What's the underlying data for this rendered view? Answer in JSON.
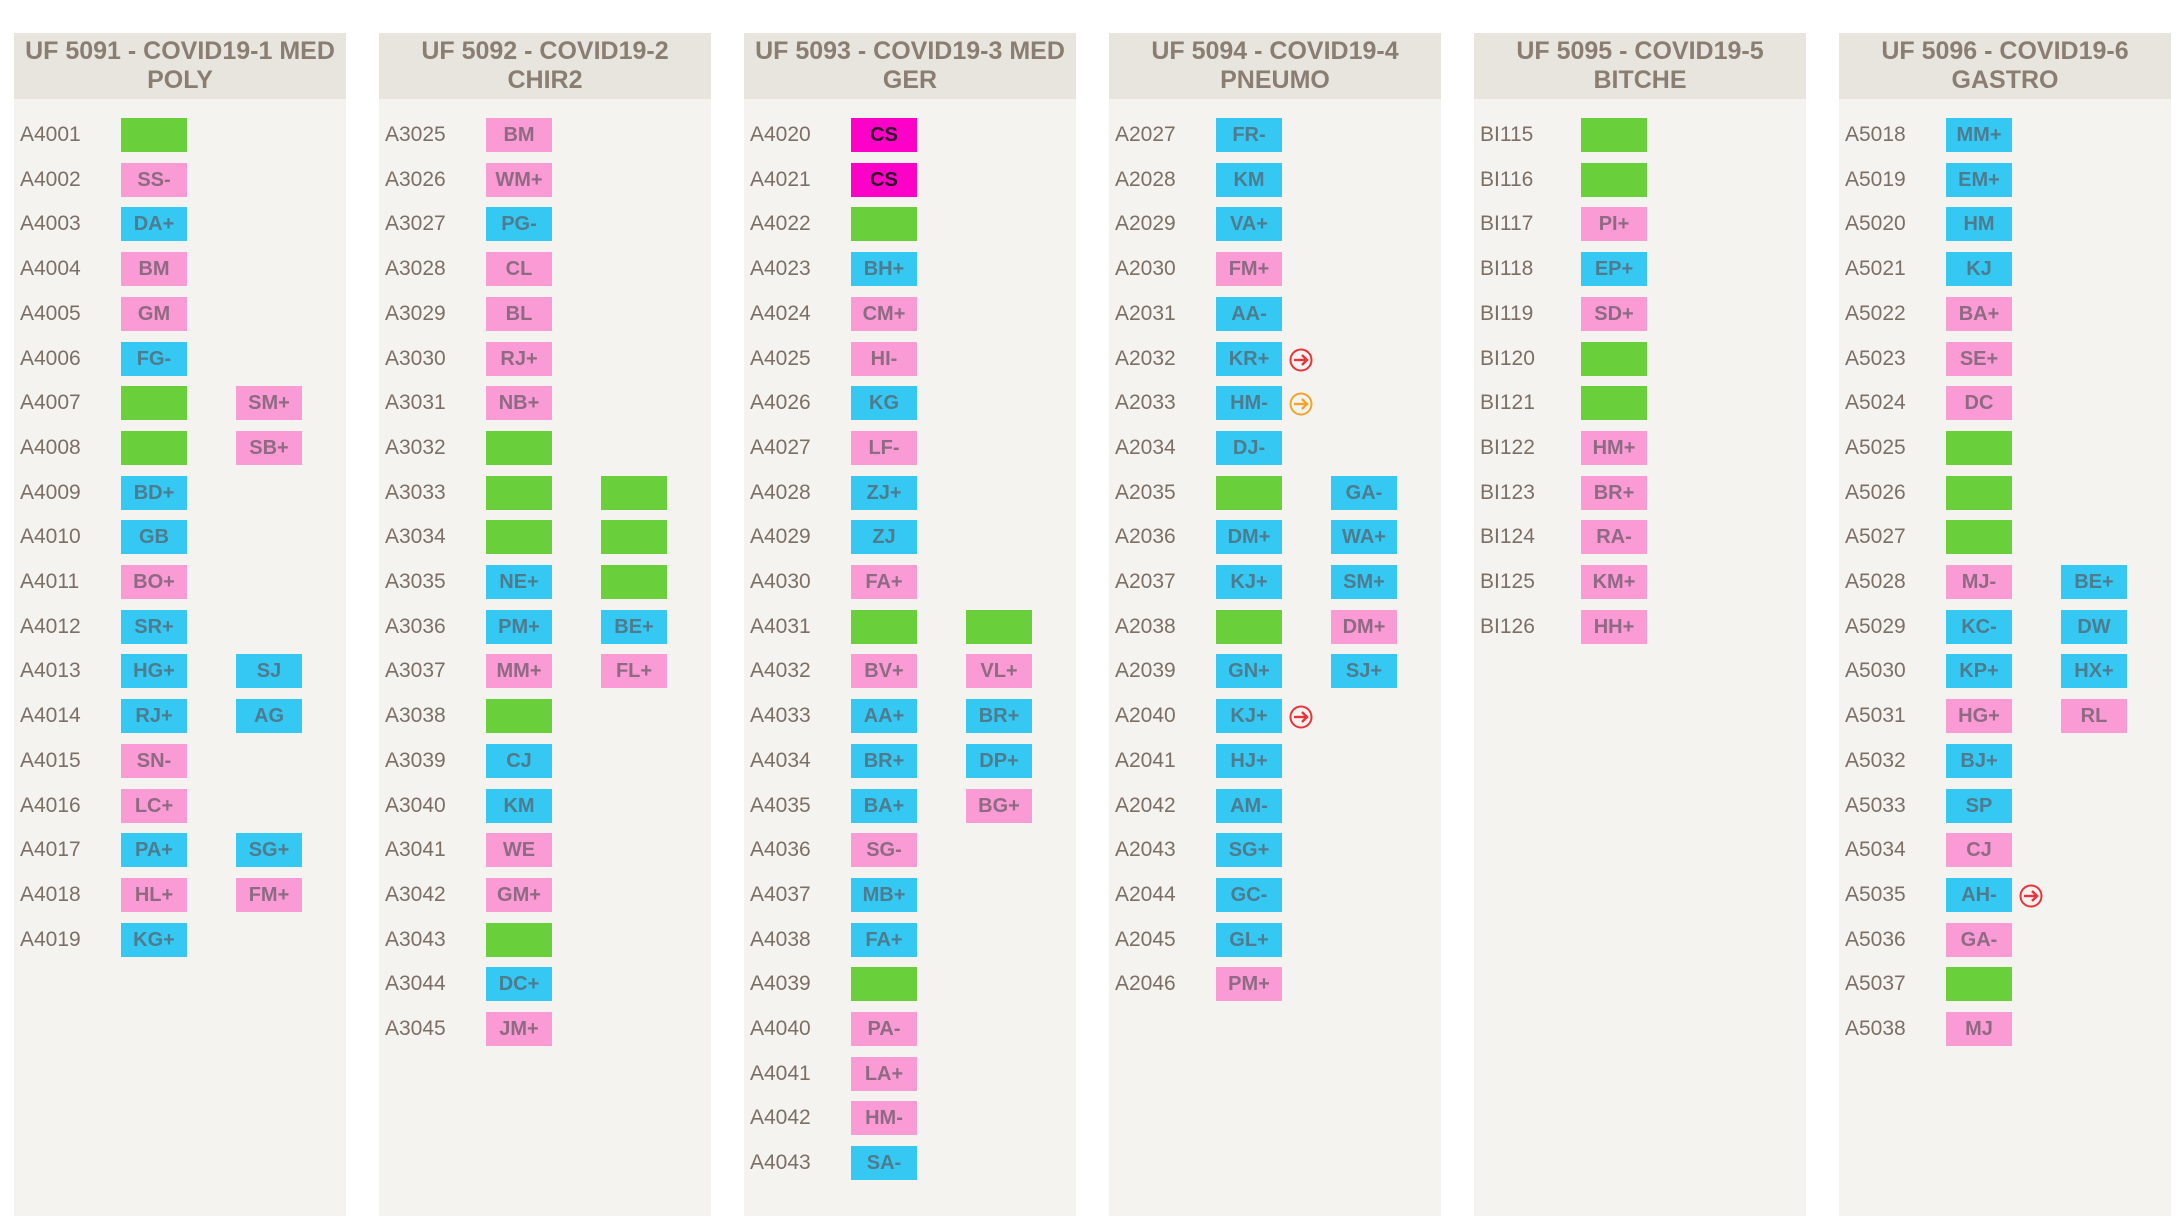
{
  "colors": {
    "pink": "#fa9bd6",
    "blue": "#35c8f3",
    "green": "#69cf3b",
    "magenta": "#ff00c8",
    "exit_red": "#e8343a",
    "exit_orange": "#f3a529"
  },
  "units": [
    {
      "title": "UF 5091 - COVID19-1 MED POLY",
      "beds": [
        {
          "id": "A4001",
          "p1": {
            "label": "",
            "color": "green"
          }
        },
        {
          "id": "A4002",
          "p1": {
            "label": "SS-",
            "color": "pink"
          }
        },
        {
          "id": "A4003",
          "p1": {
            "label": "DA+",
            "color": "blue"
          }
        },
        {
          "id": "A4004",
          "p1": {
            "label": "BM",
            "color": "pink"
          }
        },
        {
          "id": "A4005",
          "p1": {
            "label": "GM",
            "color": "pink"
          }
        },
        {
          "id": "A4006",
          "p1": {
            "label": "FG-",
            "color": "blue"
          }
        },
        {
          "id": "A4007",
          "p1": {
            "label": "",
            "color": "green"
          },
          "p2": {
            "label": "SM+",
            "color": "pink"
          }
        },
        {
          "id": "A4008",
          "p1": {
            "label": "",
            "color": "green"
          },
          "p2": {
            "label": "SB+",
            "color": "pink"
          }
        },
        {
          "id": "A4009",
          "p1": {
            "label": "BD+",
            "color": "blue"
          }
        },
        {
          "id": "A4010",
          "p1": {
            "label": "GB",
            "color": "blue"
          }
        },
        {
          "id": "A4011",
          "p1": {
            "label": "BO+",
            "color": "pink"
          }
        },
        {
          "id": "A4012",
          "p1": {
            "label": "SR+",
            "color": "blue"
          }
        },
        {
          "id": "A4013",
          "p1": {
            "label": "HG+",
            "color": "blue"
          },
          "p2": {
            "label": "SJ",
            "color": "blue"
          }
        },
        {
          "id": "A4014",
          "p1": {
            "label": "RJ+",
            "color": "blue"
          },
          "p2": {
            "label": "AG",
            "color": "blue"
          }
        },
        {
          "id": "A4015",
          "p1": {
            "label": "SN-",
            "color": "pink"
          }
        },
        {
          "id": "A4016",
          "p1": {
            "label": "LC+",
            "color": "pink"
          }
        },
        {
          "id": "A4017",
          "p1": {
            "label": "PA+",
            "color": "blue"
          },
          "p2": {
            "label": "SG+",
            "color": "blue"
          }
        },
        {
          "id": "A4018",
          "p1": {
            "label": "HL+",
            "color": "pink"
          },
          "p2": {
            "label": "FM+",
            "color": "pink"
          }
        },
        {
          "id": "A4019",
          "p1": {
            "label": "KG+",
            "color": "blue"
          }
        }
      ]
    },
    {
      "title": "UF 5092 - COVID19-2 CHIR2",
      "beds": [
        {
          "id": "A3025",
          "p1": {
            "label": "BM",
            "color": "pink"
          }
        },
        {
          "id": "A3026",
          "p1": {
            "label": "WM+",
            "color": "pink"
          }
        },
        {
          "id": "A3027",
          "p1": {
            "label": "PG-",
            "color": "blue"
          }
        },
        {
          "id": "A3028",
          "p1": {
            "label": "CL",
            "color": "pink"
          }
        },
        {
          "id": "A3029",
          "p1": {
            "label": "BL",
            "color": "pink"
          }
        },
        {
          "id": "A3030",
          "p1": {
            "label": "RJ+",
            "color": "pink"
          }
        },
        {
          "id": "A3031",
          "p1": {
            "label": "NB+",
            "color": "pink"
          }
        },
        {
          "id": "A3032",
          "p1": {
            "label": "",
            "color": "green"
          }
        },
        {
          "id": "A3033",
          "p1": {
            "label": "",
            "color": "green"
          },
          "p2": {
            "label": "",
            "color": "green"
          }
        },
        {
          "id": "A3034",
          "p1": {
            "label": "",
            "color": "green"
          },
          "p2": {
            "label": "",
            "color": "green"
          }
        },
        {
          "id": "A3035",
          "p1": {
            "label": "NE+",
            "color": "blue"
          },
          "p2": {
            "label": "",
            "color": "green"
          }
        },
        {
          "id": "A3036",
          "p1": {
            "label": "PM+",
            "color": "blue"
          },
          "p2": {
            "label": "BE+",
            "color": "blue"
          }
        },
        {
          "id": "A3037",
          "p1": {
            "label": "MM+",
            "color": "pink"
          },
          "p2": {
            "label": "FL+",
            "color": "pink"
          }
        },
        {
          "id": "A3038",
          "p1": {
            "label": "",
            "color": "green"
          }
        },
        {
          "id": "A3039",
          "p1": {
            "label": "CJ",
            "color": "blue"
          }
        },
        {
          "id": "A3040",
          "p1": {
            "label": "KM",
            "color": "blue"
          }
        },
        {
          "id": "A3041",
          "p1": {
            "label": "WE",
            "color": "pink"
          }
        },
        {
          "id": "A3042",
          "p1": {
            "label": "GM+",
            "color": "pink"
          }
        },
        {
          "id": "A3043",
          "p1": {
            "label": "",
            "color": "green"
          }
        },
        {
          "id": "A3044",
          "p1": {
            "label": "DC+",
            "color": "blue"
          }
        },
        {
          "id": "A3045",
          "p1": {
            "label": "JM+",
            "color": "pink"
          }
        }
      ]
    },
    {
      "title": "UF 5093 - COVID19-3 MED GER",
      "beds": [
        {
          "id": "A4020",
          "p1": {
            "label": "CS",
            "color": "magenta"
          }
        },
        {
          "id": "A4021",
          "p1": {
            "label": "CS",
            "color": "magenta"
          }
        },
        {
          "id": "A4022",
          "p1": {
            "label": "",
            "color": "green"
          }
        },
        {
          "id": "A4023",
          "p1": {
            "label": "BH+",
            "color": "blue"
          }
        },
        {
          "id": "A4024",
          "p1": {
            "label": "CM+",
            "color": "pink"
          }
        },
        {
          "id": "A4025",
          "p1": {
            "label": "HI-",
            "color": "pink"
          }
        },
        {
          "id": "A4026",
          "p1": {
            "label": "KG",
            "color": "blue"
          }
        },
        {
          "id": "A4027",
          "p1": {
            "label": "LF-",
            "color": "pink"
          }
        },
        {
          "id": "A4028",
          "p1": {
            "label": "ZJ+",
            "color": "blue"
          }
        },
        {
          "id": "A4029",
          "p1": {
            "label": "ZJ",
            "color": "blue"
          }
        },
        {
          "id": "A4030",
          "p1": {
            "label": "FA+",
            "color": "pink"
          }
        },
        {
          "id": "A4031",
          "p1": {
            "label": "",
            "color": "green"
          },
          "p2": {
            "label": "",
            "color": "green"
          }
        },
        {
          "id": "A4032",
          "p1": {
            "label": "BV+",
            "color": "pink"
          },
          "p2": {
            "label": "VL+",
            "color": "pink"
          }
        },
        {
          "id": "A4033",
          "p1": {
            "label": "AA+",
            "color": "blue"
          },
          "p2": {
            "label": "BR+",
            "color": "blue"
          }
        },
        {
          "id": "A4034",
          "p1": {
            "label": "BR+",
            "color": "blue"
          },
          "p2": {
            "label": "DP+",
            "color": "blue"
          }
        },
        {
          "id": "A4035",
          "p1": {
            "label": "BA+",
            "color": "blue"
          },
          "p2": {
            "label": "BG+",
            "color": "pink"
          }
        },
        {
          "id": "A4036",
          "p1": {
            "label": "SG-",
            "color": "pink"
          }
        },
        {
          "id": "A4037",
          "p1": {
            "label": "MB+",
            "color": "blue"
          }
        },
        {
          "id": "A4038",
          "p1": {
            "label": "FA+",
            "color": "blue"
          }
        },
        {
          "id": "A4039",
          "p1": {
            "label": "",
            "color": "green"
          }
        },
        {
          "id": "A4040",
          "p1": {
            "label": "PA-",
            "color": "pink"
          }
        },
        {
          "id": "A4041",
          "p1": {
            "label": "LA+",
            "color": "pink"
          }
        },
        {
          "id": "A4042",
          "p1": {
            "label": "HM-",
            "color": "pink"
          }
        },
        {
          "id": "A4043",
          "p1": {
            "label": "SA-",
            "color": "blue"
          }
        }
      ]
    },
    {
      "title": "UF 5094 - COVID19-4 PNEUMO",
      "beds": [
        {
          "id": "A2027",
          "p1": {
            "label": "FR-",
            "color": "blue"
          }
        },
        {
          "id": "A2028",
          "p1": {
            "label": "KM",
            "color": "blue"
          }
        },
        {
          "id": "A2029",
          "p1": {
            "label": "VA+",
            "color": "blue"
          }
        },
        {
          "id": "A2030",
          "p1": {
            "label": "FM+",
            "color": "pink"
          }
        },
        {
          "id": "A2031",
          "p1": {
            "label": "AA-",
            "color": "blue"
          }
        },
        {
          "id": "A2032",
          "p1": {
            "label": "KR+",
            "color": "blue"
          },
          "exit": "red"
        },
        {
          "id": "A2033",
          "p1": {
            "label": "HM-",
            "color": "blue"
          },
          "exit": "orange"
        },
        {
          "id": "A2034",
          "p1": {
            "label": "DJ-",
            "color": "blue"
          }
        },
        {
          "id": "A2035",
          "p1": {
            "label": "",
            "color": "green"
          },
          "p2": {
            "label": "GA-",
            "color": "blue"
          }
        },
        {
          "id": "A2036",
          "p1": {
            "label": "DM+",
            "color": "blue"
          },
          "p2": {
            "label": "WA+",
            "color": "blue"
          }
        },
        {
          "id": "A2037",
          "p1": {
            "label": "KJ+",
            "color": "blue"
          },
          "p2": {
            "label": "SM+",
            "color": "blue"
          }
        },
        {
          "id": "A2038",
          "p1": {
            "label": "",
            "color": "green"
          },
          "p2": {
            "label": "DM+",
            "color": "pink"
          }
        },
        {
          "id": "A2039",
          "p1": {
            "label": "GN+",
            "color": "blue"
          },
          "p2": {
            "label": "SJ+",
            "color": "blue"
          }
        },
        {
          "id": "A2040",
          "p1": {
            "label": "KJ+",
            "color": "blue"
          },
          "exit": "red"
        },
        {
          "id": "A2041",
          "p1": {
            "label": "HJ+",
            "color": "blue"
          }
        },
        {
          "id": "A2042",
          "p1": {
            "label": "AM-",
            "color": "blue"
          }
        },
        {
          "id": "A2043",
          "p1": {
            "label": "SG+",
            "color": "blue"
          }
        },
        {
          "id": "A2044",
          "p1": {
            "label": "GC-",
            "color": "blue"
          }
        },
        {
          "id": "A2045",
          "p1": {
            "label": "GL+",
            "color": "blue"
          }
        },
        {
          "id": "A2046",
          "p1": {
            "label": "PM+",
            "color": "pink"
          }
        }
      ]
    },
    {
      "title": "UF 5095 - COVID19-5 BITCHE",
      "beds": [
        {
          "id": "BI115",
          "p1": {
            "label": "",
            "color": "green"
          }
        },
        {
          "id": "BI116",
          "p1": {
            "label": "",
            "color": "green"
          }
        },
        {
          "id": "BI117",
          "p1": {
            "label": "PI+",
            "color": "pink"
          }
        },
        {
          "id": "BI118",
          "p1": {
            "label": "EP+",
            "color": "blue"
          }
        },
        {
          "id": "BI119",
          "p1": {
            "label": "SD+",
            "color": "pink"
          }
        },
        {
          "id": "BI120",
          "p1": {
            "label": "",
            "color": "green"
          }
        },
        {
          "id": "BI121",
          "p1": {
            "label": "",
            "color": "green"
          }
        },
        {
          "id": "BI122",
          "p1": {
            "label": "HM+",
            "color": "pink"
          }
        },
        {
          "id": "BI123",
          "p1": {
            "label": "BR+",
            "color": "pink"
          }
        },
        {
          "id": "BI124",
          "p1": {
            "label": "RA-",
            "color": "pink"
          }
        },
        {
          "id": "BI125",
          "p1": {
            "label": "KM+",
            "color": "pink"
          }
        },
        {
          "id": "BI126",
          "p1": {
            "label": "HH+",
            "color": "pink"
          }
        }
      ]
    },
    {
      "title": "UF 5096 - COVID19-6 GASTRO",
      "beds": [
        {
          "id": "A5018",
          "p1": {
            "label": "MM+",
            "color": "blue"
          }
        },
        {
          "id": "A5019",
          "p1": {
            "label": "EM+",
            "color": "blue"
          }
        },
        {
          "id": "A5020",
          "p1": {
            "label": "HM",
            "color": "blue"
          }
        },
        {
          "id": "A5021",
          "p1": {
            "label": "KJ",
            "color": "blue"
          }
        },
        {
          "id": "A5022",
          "p1": {
            "label": "BA+",
            "color": "pink"
          }
        },
        {
          "id": "A5023",
          "p1": {
            "label": "SE+",
            "color": "pink"
          }
        },
        {
          "id": "A5024",
          "p1": {
            "label": "DC",
            "color": "pink"
          }
        },
        {
          "id": "A5025",
          "p1": {
            "label": "",
            "color": "green"
          }
        },
        {
          "id": "A5026",
          "p1": {
            "label": "",
            "color": "green"
          }
        },
        {
          "id": "A5027",
          "p1": {
            "label": "",
            "color": "green"
          }
        },
        {
          "id": "A5028",
          "p1": {
            "label": "MJ-",
            "color": "pink"
          },
          "p2": {
            "label": "BE+",
            "color": "blue"
          }
        },
        {
          "id": "A5029",
          "p1": {
            "label": "KC-",
            "color": "blue"
          },
          "p2": {
            "label": "DW",
            "color": "blue"
          }
        },
        {
          "id": "A5030",
          "p1": {
            "label": "KP+",
            "color": "blue"
          },
          "p2": {
            "label": "HX+",
            "color": "blue"
          }
        },
        {
          "id": "A5031",
          "p1": {
            "label": "HG+",
            "color": "pink"
          },
          "p2": {
            "label": "RL",
            "color": "pink"
          }
        },
        {
          "id": "A5032",
          "p1": {
            "label": "BJ+",
            "color": "blue"
          }
        },
        {
          "id": "A5033",
          "p1": {
            "label": "SP",
            "color": "blue"
          }
        },
        {
          "id": "A5034",
          "p1": {
            "label": "CJ",
            "color": "pink"
          }
        },
        {
          "id": "A5035",
          "p1": {
            "label": "AH-",
            "color": "blue"
          },
          "exit": "red"
        },
        {
          "id": "A5036",
          "p1": {
            "label": "GA-",
            "color": "pink"
          }
        },
        {
          "id": "A5037",
          "p1": {
            "label": "",
            "color": "green"
          }
        },
        {
          "id": "A5038",
          "p1": {
            "label": "MJ",
            "color": "pink"
          }
        }
      ]
    }
  ]
}
